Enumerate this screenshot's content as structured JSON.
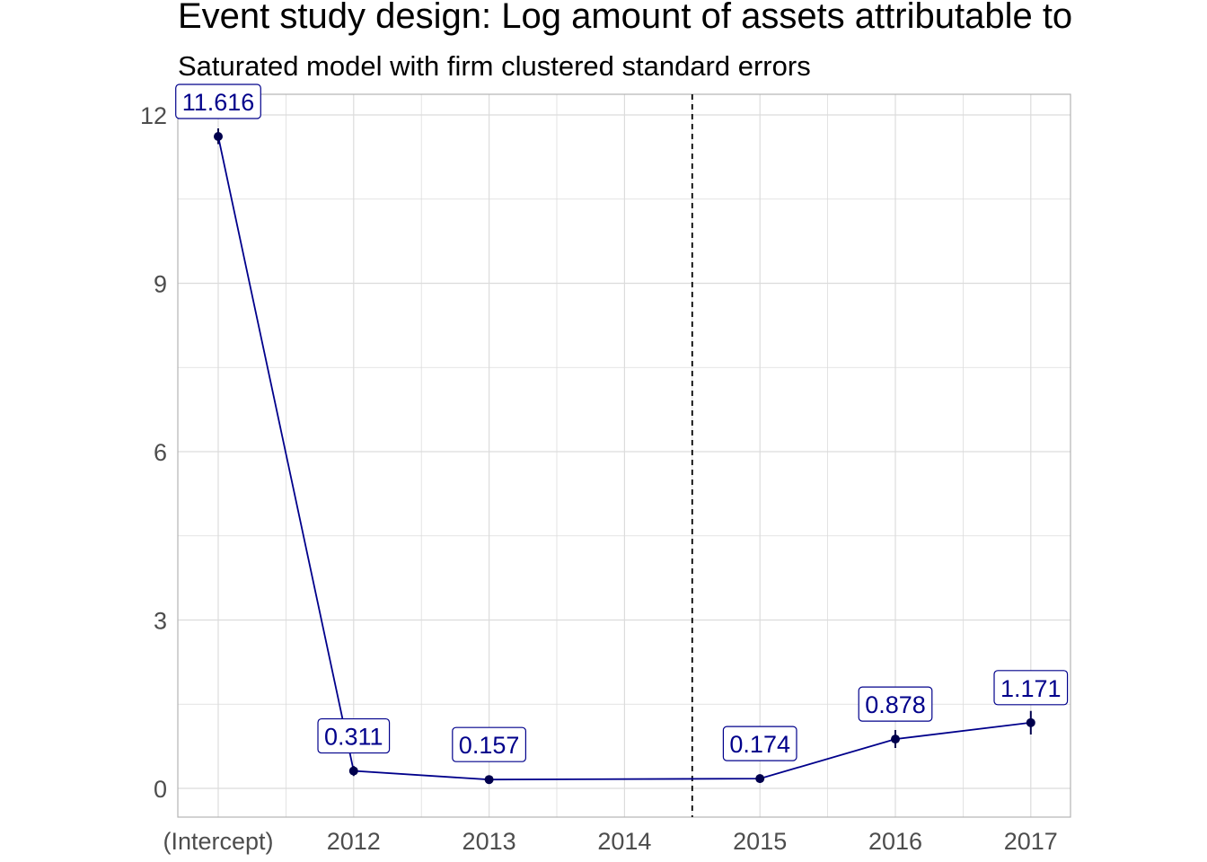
{
  "chart_data": {
    "type": "line",
    "title": "Event study design: Log amount of assets attributable to",
    "subtitle": "Saturated model with firm clustered standard errors",
    "xlabel": "",
    "ylabel": "",
    "categories": [
      "(Intercept)",
      "2012",
      "2013",
      "2014",
      "2015",
      "2016",
      "2017"
    ],
    "series": [
      {
        "points": [
          {
            "category": "(Intercept)",
            "value": 11.616,
            "label": "11.616",
            "ci_low": 11.48,
            "ci_high": 11.76
          },
          {
            "category": "2012",
            "value": 0.311,
            "label": "0.311",
            "ci_low": 0.22,
            "ci_high": 0.4
          },
          {
            "category": "2013",
            "value": 0.157,
            "label": "0.157",
            "ci_low": 0.1,
            "ci_high": 0.22
          },
          {
            "category": "2015",
            "value": 0.174,
            "label": "0.174",
            "ci_low": 0.1,
            "ci_high": 0.25
          },
          {
            "category": "2016",
            "value": 0.878,
            "label": "0.878",
            "ci_low": 0.72,
            "ci_high": 1.04
          },
          {
            "category": "2017",
            "value": 1.171,
            "label": "1.171",
            "ci_low": 0.96,
            "ci_high": 1.38
          }
        ]
      }
    ],
    "yticks": [
      0,
      3,
      6,
      9,
      12
    ],
    "ytick_labels": [
      "0",
      "3",
      "6",
      "9",
      "12"
    ],
    "ylim": [
      -0.5,
      12.3
    ],
    "vline": {
      "position": "between 2014 and 2015",
      "style": "dashed",
      "color": "#000000"
    },
    "grid": true,
    "legend": "none",
    "colors": {
      "line": "#00008b",
      "point": "#00004d",
      "label_text": "#00008b",
      "label_border": "#00008b",
      "grid": "#dcdcdc",
      "panel_border": "#b3b3b3",
      "tick_text": "#4d4d4d"
    }
  }
}
